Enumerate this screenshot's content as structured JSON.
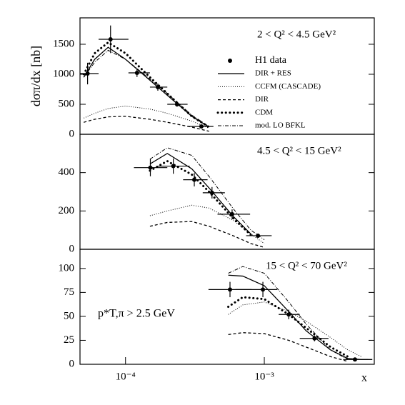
{
  "chart_data": [
    {
      "type": "line",
      "log_x": true,
      "title": "2 < Q² < 4.5 GeV²",
      "ylabel": "dσπ/dx [nb]",
      "legend": "upper right",
      "xlim": [
        4.7e-05,
        0.0062
      ],
      "ylim": [
        0,
        1940
      ],
      "yticks": [
        0,
        500,
        1000,
        1500
      ],
      "series": [
        {
          "name": "H1 data",
          "style": "points",
          "x": [
            5.33e-05,
            7.8e-05,
            0.000121,
            0.000171,
            0.000235,
            0.000352
          ],
          "values": [
            1012,
            1583,
            1024,
            786,
            500,
            131
          ],
          "errors": [
            180,
            230,
            70,
            60,
            40,
            20
          ],
          "x_low": [
            4.7e-05,
            6.4e-05,
            0.000105,
            0.00015,
            0.0002,
            0.00028
          ],
          "x_high": [
            6.4e-05,
            0.000105,
            0.00015,
            0.0002,
            0.00028,
            0.00043
          ]
        },
        {
          "name": "DIR + RES",
          "style": "solid",
          "x": [
            5e-05,
            6e-05,
            7.5e-05,
            0.0001,
            0.00015,
            0.0002,
            0.0003,
            0.0004
          ],
          "values": [
            950,
            1250,
            1450,
            1250,
            900,
            650,
            300,
            120
          ]
        },
        {
          "name": "CCFM (CASCADE)",
          "style": "dotted",
          "x": [
            5e-05,
            6e-05,
            7.5e-05,
            0.0001,
            0.00015,
            0.0002,
            0.0003,
            0.0004
          ],
          "values": [
            270,
            350,
            430,
            470,
            420,
            350,
            220,
            100
          ]
        },
        {
          "name": "DIR",
          "style": "dashed",
          "x": [
            5e-05,
            6e-05,
            7.5e-05,
            0.0001,
            0.00015,
            0.0002,
            0.0003,
            0.0004
          ],
          "values": [
            200,
            250,
            290,
            300,
            250,
            200,
            120,
            50
          ]
        },
        {
          "name": "CDM",
          "style": "dotted-bold",
          "x": [
            5e-05,
            6e-05,
            7.5e-05,
            0.0001,
            0.00015,
            0.0002,
            0.0003,
            0.0004
          ],
          "values": [
            1000,
            1350,
            1530,
            1350,
            950,
            680,
            300,
            120
          ]
        },
        {
          "name": "mod. LO BFKL",
          "style": "dashdot",
          "x": [
            5e-05,
            6e-05,
            7.5e-05,
            0.0001,
            0.00015,
            0.0002,
            0.0003,
            0.0004
          ],
          "values": [
            950,
            1200,
            1400,
            1250,
            920,
            680,
            320,
            130
          ]
        }
      ]
    },
    {
      "type": "line",
      "log_x": true,
      "title": "4.5 < Q² < 15 GeV²",
      "xlim": [
        4.7e-05,
        0.0062
      ],
      "ylim": [
        0,
        600
      ],
      "yticks": [
        0,
        200,
        400
      ],
      "series": [
        {
          "style": "points",
          "x": [
            0.000151,
            0.000221,
            0.000313,
            0.00042,
            0.000586,
            0.0009
          ],
          "values": [
            426,
            434,
            363,
            295,
            183,
            71
          ],
          "errors": [
            45,
            40,
            35,
            30,
            25,
            10
          ],
          "x_low": [
            0.000115,
            0.00017,
            0.00026,
            0.00036,
            0.00046,
            0.00074
          ],
          "x_high": [
            0.0002,
            0.00029,
            0.00039,
            0.00052,
            0.00079,
            0.00113
          ]
        },
        {
          "style": "solid",
          "x": [
            0.00015,
            0.0002,
            0.0003,
            0.0004,
            0.0006,
            0.0008
          ],
          "values": [
            445,
            500,
            420,
            320,
            170,
            80
          ]
        },
        {
          "style": "dotted",
          "x": [
            0.00015,
            0.0002,
            0.0003,
            0.0004,
            0.0006,
            0.0008,
            0.001
          ],
          "values": [
            175,
            200,
            230,
            215,
            150,
            80,
            30
          ]
        },
        {
          "style": "dashed",
          "x": [
            0.00015,
            0.0002,
            0.0003,
            0.0004,
            0.0006,
            0.0008,
            0.001
          ],
          "values": [
            120,
            140,
            145,
            120,
            70,
            30,
            10
          ]
        },
        {
          "style": "dotted-bold",
          "x": [
            0.00015,
            0.0002,
            0.0003,
            0.0004,
            0.0006,
            0.0008
          ],
          "values": [
            410,
            460,
            390,
            300,
            160,
            75
          ]
        },
        {
          "style": "dashdot",
          "x": [
            0.00015,
            0.0002,
            0.0003,
            0.0004,
            0.0006,
            0.0008,
            0.001
          ],
          "values": [
            470,
            530,
            490,
            380,
            210,
            100,
            50
          ]
        }
      ]
    },
    {
      "type": "line",
      "log_x": true,
      "title": "15 < Q² < 70 GeV²",
      "annotation": "p*T,π > 2.5 GeV",
      "xlabel": "x",
      "xlim": [
        4.7e-05,
        0.0062
      ],
      "ylim": [
        0,
        120
      ],
      "yticks": [
        0,
        25,
        50,
        75,
        100
      ],
      "xticks": [
        {
          "value": 0.0001,
          "label": "10⁻⁴"
        },
        {
          "value": 0.001,
          "label": "10⁻³"
        }
      ],
      "series": [
        {
          "style": "points",
          "x": [
            0.000566,
            0.000977,
            0.0015,
            0.0023,
            0.0045
          ],
          "values": [
            78,
            78,
            52,
            27,
            5
          ],
          "errors": [
            8,
            8,
            5,
            3,
            1
          ],
          "x_low": [
            0.000396,
            0.00062,
            0.00127,
            0.0018,
            0.0037
          ],
          "x_high": [
            0.00081,
            0.00124,
            0.0018,
            0.0029,
            0.0056
          ]
        },
        {
          "style": "solid",
          "x": [
            0.00055,
            0.0007,
            0.001,
            0.0015,
            0.002,
            0.003,
            0.004,
            0.005,
            0.006
          ],
          "values": [
            93,
            92,
            82,
            55,
            35,
            15,
            6,
            5,
            5
          ]
        },
        {
          "style": "dotted",
          "x": [
            0.00055,
            0.0007,
            0.001,
            0.0015,
            0.002,
            0.003,
            0.004,
            0.005
          ],
          "values": [
            52,
            62,
            65,
            55,
            45,
            28,
            15,
            8
          ]
        },
        {
          "style": "dashed",
          "x": [
            0.00055,
            0.0007,
            0.001,
            0.0015,
            0.002,
            0.003,
            0.004
          ],
          "values": [
            31,
            33,
            32,
            25,
            18,
            8,
            3
          ]
        },
        {
          "style": "dotted-bold",
          "x": [
            0.00055,
            0.0007,
            0.001,
            0.0015,
            0.002,
            0.003,
            0.004
          ],
          "values": [
            60,
            70,
            68,
            52,
            38,
            18,
            8
          ]
        },
        {
          "style": "dashdot",
          "x": [
            0.00055,
            0.0007,
            0.001,
            0.0015,
            0.002,
            0.003,
            0.004
          ],
          "values": [
            95,
            102,
            95,
            65,
            42,
            15,
            5
          ]
        }
      ]
    }
  ]
}
